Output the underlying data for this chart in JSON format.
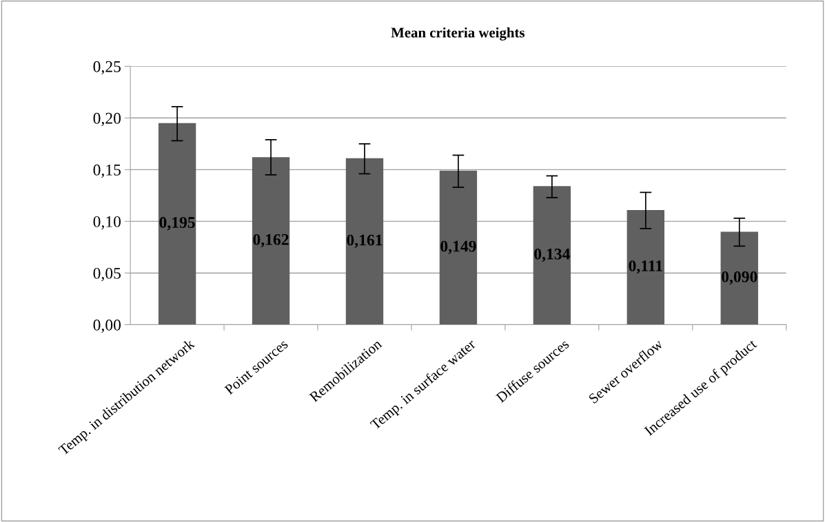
{
  "chart_data": {
    "type": "bar",
    "title": "Mean criteria weights",
    "categories": [
      "Temp. in distribution network",
      "Point sources",
      "Remobilization",
      "Temp. in surface water",
      "Diffuse sources",
      "Sewer overflow",
      "Increased use of product"
    ],
    "values": [
      0.195,
      0.162,
      0.161,
      0.149,
      0.134,
      0.111,
      0.09
    ],
    "value_labels": [
      "0,195",
      "0,162",
      "0,161",
      "0,149",
      "0,134",
      "0,111",
      "0,090"
    ],
    "errors": [
      [
        0.178,
        0.211
      ],
      [
        0.145,
        0.179
      ],
      [
        0.146,
        0.175
      ],
      [
        0.133,
        0.164
      ],
      [
        0.123,
        0.144
      ],
      [
        0.093,
        0.128
      ],
      [
        0.076,
        0.103
      ]
    ],
    "color": "#606060",
    "ylim": [
      0,
      0.25
    ],
    "yticks": [
      {
        "value": 0,
        "label": "0,00"
      },
      {
        "value": 0.05,
        "label": "0,05"
      },
      {
        "value": 0.1,
        "label": "0,10"
      },
      {
        "value": 0.15,
        "label": "0,15"
      },
      {
        "value": 0.2,
        "label": "0,20"
      },
      {
        "value": 0.25,
        "label": "0,25"
      }
    ],
    "grid": "y",
    "legend": false
  }
}
